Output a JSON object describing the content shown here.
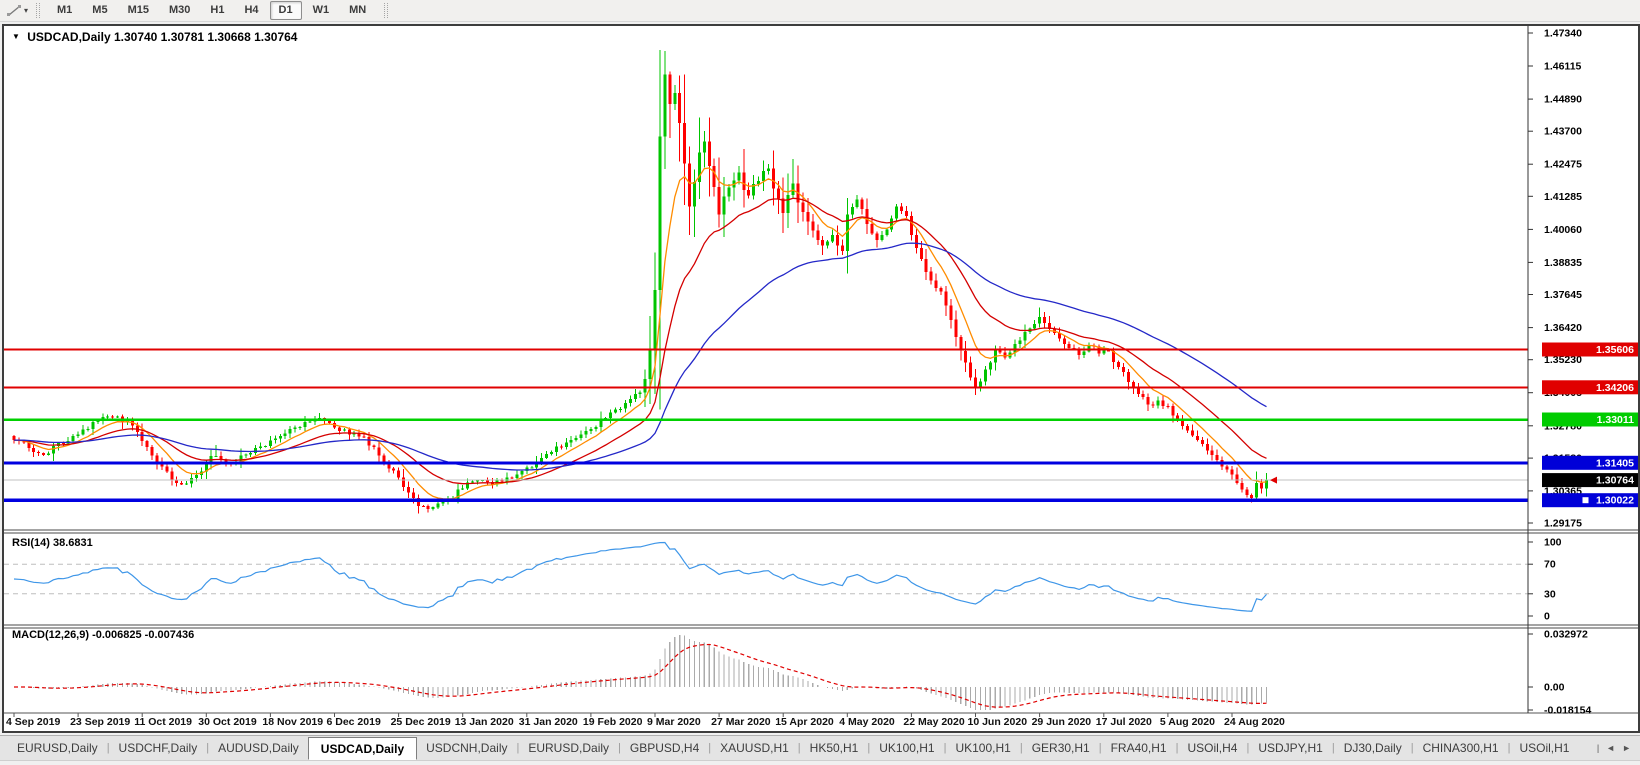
{
  "toolbar": {
    "timeframes": [
      "M1",
      "M5",
      "M15",
      "M30",
      "H1",
      "H4",
      "D1",
      "W1",
      "MN"
    ],
    "selected": "D1"
  },
  "icons": {
    "dropdown": "▼",
    "caret": "▾",
    "scroll_left": "◄",
    "scroll_right": "►",
    "tab_separator": "|"
  },
  "header": {
    "symbol": "USDCAD,Daily",
    "ohlc": "1.30740 1.30781 1.30668 1.30764"
  },
  "rsi_panel": {
    "label": "RSI(14) 38.6831",
    "period": 14,
    "last": 38.6831,
    "axis_labels": [
      100,
      70,
      30,
      0
    ],
    "levels": [
      70,
      30
    ],
    "line_color": "#3E96E8"
  },
  "macd_panel": {
    "label": "MACD(12,26,9) -0.006825 -0.007436",
    "params": "12,26,9",
    "last_macd": -0.006825,
    "last_signal": -0.007436,
    "axis_labels": [
      "0.032972",
      "0.00",
      "-0.018154"
    ],
    "histogram_color": "#ababab",
    "signal_color": "#E00000"
  },
  "price_axis": {
    "ticks": [
      "1.47340",
      "1.46115",
      "1.44890",
      "1.43700",
      "1.42475",
      "1.41285",
      "1.40060",
      "1.38835",
      "1.37645",
      "1.36420",
      "1.35230",
      "1.34005",
      "1.32780",
      "1.31580",
      "1.30365",
      "1.29175"
    ],
    "badges": [
      {
        "text": "1.35606",
        "bg": "#E00000"
      },
      {
        "text": "1.34206",
        "bg": "#E00000"
      },
      {
        "text": "1.33011",
        "bg": "#00CC00"
      },
      {
        "text": "1.31405",
        "bg": "#0000D8"
      },
      {
        "text": "1.30022",
        "bg": "#0000D8"
      },
      {
        "text": "1.30764",
        "bg": "#000000"
      }
    ]
  },
  "chart_data": {
    "type": "candlestick",
    "symbol": "USDCAD",
    "period": "Daily",
    "ylim": [
      1.29175,
      1.4734
    ],
    "up_color": "#00C400",
    "down_color": "#FF0000",
    "num_candles": 255,
    "candles_per_date_label": 13,
    "dates": [
      "4 Sep 2019",
      "23 Sep 2019",
      "11 Oct 2019",
      "30 Oct 2019",
      "18 Nov 2019",
      "6 Dec 2019",
      "25 Dec 2019",
      "13 Jan 2020",
      "31 Jan 2020",
      "19 Feb 2020",
      "9 Mar 2020",
      "27 Mar 2020",
      "15 Apr 2020",
      "4 May 2020",
      "22 May 2020",
      "10 Jun 2020",
      "29 Jun 2020",
      "17 Jul 2020",
      "5 Aug 2020",
      "24 Aug 2020"
    ],
    "close_anchors": [
      [
        0,
        1.3225
      ],
      [
        3,
        1.3196
      ],
      [
        6,
        1.317
      ],
      [
        9,
        1.3214
      ],
      [
        13,
        1.3246
      ],
      [
        16,
        1.3292
      ],
      [
        19,
        1.3312
      ],
      [
        23,
        1.3296
      ],
      [
        26,
        1.3221
      ],
      [
        29,
        1.3142
      ],
      [
        32,
        1.3078
      ],
      [
        34,
        1.3061
      ],
      [
        37,
        1.3095
      ],
      [
        40,
        1.3166
      ],
      [
        42,
        1.3152
      ],
      [
        44,
        1.3136
      ],
      [
        47,
        1.3171
      ],
      [
        50,
        1.3202
      ],
      [
        53,
        1.3231
      ],
      [
        56,
        1.3266
      ],
      [
        59,
        1.3291
      ],
      [
        62,
        1.3306
      ],
      [
        65,
        1.3272
      ],
      [
        68,
        1.3246
      ],
      [
        71,
        1.3236
      ],
      [
        74,
        1.3167
      ],
      [
        77,
        1.3112
      ],
      [
        80,
        1.3031
      ],
      [
        82,
        1.2981
      ],
      [
        85,
        1.2976
      ],
      [
        88,
        1.3006
      ],
      [
        91,
        1.3046
      ],
      [
        94,
        1.3076
      ],
      [
        97,
        1.3061
      ],
      [
        100,
        1.3086
      ],
      [
        103,
        1.3111
      ],
      [
        106,
        1.3146
      ],
      [
        109,
        1.3181
      ],
      [
        112,
        1.3216
      ],
      [
        115,
        1.3246
      ],
      [
        117,
        1.3266
      ],
      [
        120,
        1.3306
      ],
      [
        123,
        1.3341
      ],
      [
        126,
        1.3396
      ],
      [
        128,
        1.3451
      ],
      [
        129,
        1.3561
      ],
      [
        130,
        1.3781
      ],
      [
        131,
        1.4351
      ],
      [
        132,
        1.4581
      ],
      [
        133,
        1.4471
      ],
      [
        134,
        1.4511
      ],
      [
        135,
        1.4401
      ],
      [
        136,
        1.4251
      ],
      [
        137,
        1.4091
      ],
      [
        138,
        1.4181
      ],
      [
        139,
        1.4291
      ],
      [
        140,
        1.4331
      ],
      [
        141,
        1.4241
      ],
      [
        143,
        1.4061
      ],
      [
        145,
        1.4161
      ],
      [
        147,
        1.4216
      ],
      [
        149,
        1.4131
      ],
      [
        151,
        1.4186
      ],
      [
        153,
        1.4231
      ],
      [
        155,
        1.4121
      ],
      [
        156,
        1.4066
      ],
      [
        158,
        1.4176
      ],
      [
        160,
        1.4071
      ],
      [
        162,
        1.4001
      ],
      [
        164,
        1.3946
      ],
      [
        166,
        1.3986
      ],
      [
        168,
        1.3926
      ],
      [
        169,
        1.4061
      ],
      [
        171,
        1.4116
      ],
      [
        173,
        1.4026
      ],
      [
        175,
        1.3966
      ],
      [
        177,
        1.4006
      ],
      [
        179,
        1.4091
      ],
      [
        181,
        1.4056
      ],
      [
        182,
        1.3986
      ],
      [
        184,
        1.3896
      ],
      [
        186,
        1.3816
      ],
      [
        188,
        1.3776
      ],
      [
        190,
        1.3671
      ],
      [
        192,
        1.3556
      ],
      [
        194,
        1.3456
      ],
      [
        195,
        1.3416
      ],
      [
        197,
        1.3486
      ],
      [
        199,
        1.3561
      ],
      [
        201,
        1.3531
      ],
      [
        203,
        1.3581
      ],
      [
        205,
        1.3626
      ],
      [
        207,
        1.3656
      ],
      [
        208,
        1.3681
      ],
      [
        210,
        1.3636
      ],
      [
        212,
        1.3601
      ],
      [
        214,
        1.3566
      ],
      [
        216,
        1.3541
      ],
      [
        218,
        1.3576
      ],
      [
        220,
        1.3546
      ],
      [
        222,
        1.3556
      ],
      [
        224,
        1.3496
      ],
      [
        226,
        1.3441
      ],
      [
        228,
        1.3396
      ],
      [
        230,
        1.3356
      ],
      [
        232,
        1.3371
      ],
      [
        234,
        1.3351
      ],
      [
        236,
        1.3296
      ],
      [
        238,
        1.3261
      ],
      [
        240,
        1.3226
      ],
      [
        242,
        1.3186
      ],
      [
        244,
        1.3151
      ],
      [
        246,
        1.3116
      ],
      [
        248,
        1.3066
      ],
      [
        249,
        1.3041
      ],
      [
        250,
        1.3021
      ],
      [
        251,
        1.3011
      ],
      [
        252,
        1.3066
      ],
      [
        253,
        1.3046
      ],
      [
        254,
        1.30764
      ]
    ],
    "high_overrides": [
      [
        41,
        1.3206
      ],
      [
        62,
        1.3326
      ],
      [
        130,
        1.3921
      ],
      [
        131,
        1.4671
      ],
      [
        132,
        1.4668
      ],
      [
        133,
        1.4591
      ],
      [
        158,
        1.4266
      ],
      [
        208,
        1.3716
      ]
    ],
    "low_overrides": [
      [
        82,
        1.2952
      ],
      [
        137,
        1.3985
      ],
      [
        195,
        1.3392
      ],
      [
        251,
        1.2994
      ]
    ],
    "moving_averages": [
      {
        "period": 8,
        "color": "#FF8C00"
      },
      {
        "period": 21,
        "color": "#D40000"
      },
      {
        "period": 55,
        "color": "#2428C8"
      }
    ],
    "hlines": [
      {
        "price": 1.35606,
        "color": "#E00000",
        "width": 2
      },
      {
        "price": 1.34206,
        "color": "#E00000",
        "width": 2
      },
      {
        "price": 1.33011,
        "color": "#00D000",
        "width": 2.5
      },
      {
        "price": 1.31405,
        "color": "#0000E0",
        "width": 3
      },
      {
        "price": 1.30022,
        "color": "#0000E0",
        "width": 3.5
      }
    ],
    "current_price": 1.30764,
    "current_price_line_color": "#C0C0C0"
  },
  "tabs": {
    "items": [
      "EURUSD,Daily",
      "USDCHF,Daily",
      "AUDUSD,Daily",
      "USDCAD,Daily",
      "USDCNH,Daily",
      "EURUSD,Daily",
      "GBPUSD,H4",
      "XAUUSD,H1",
      "HK50,H1",
      "UK100,H1",
      "UK100,H1",
      "GER30,H1",
      "FRA40,H1",
      "USOil,H4",
      "USDJPY,H1",
      "DJ30,Daily",
      "CHINA300,H1",
      "USOil,H1"
    ],
    "active_index": 3
  }
}
